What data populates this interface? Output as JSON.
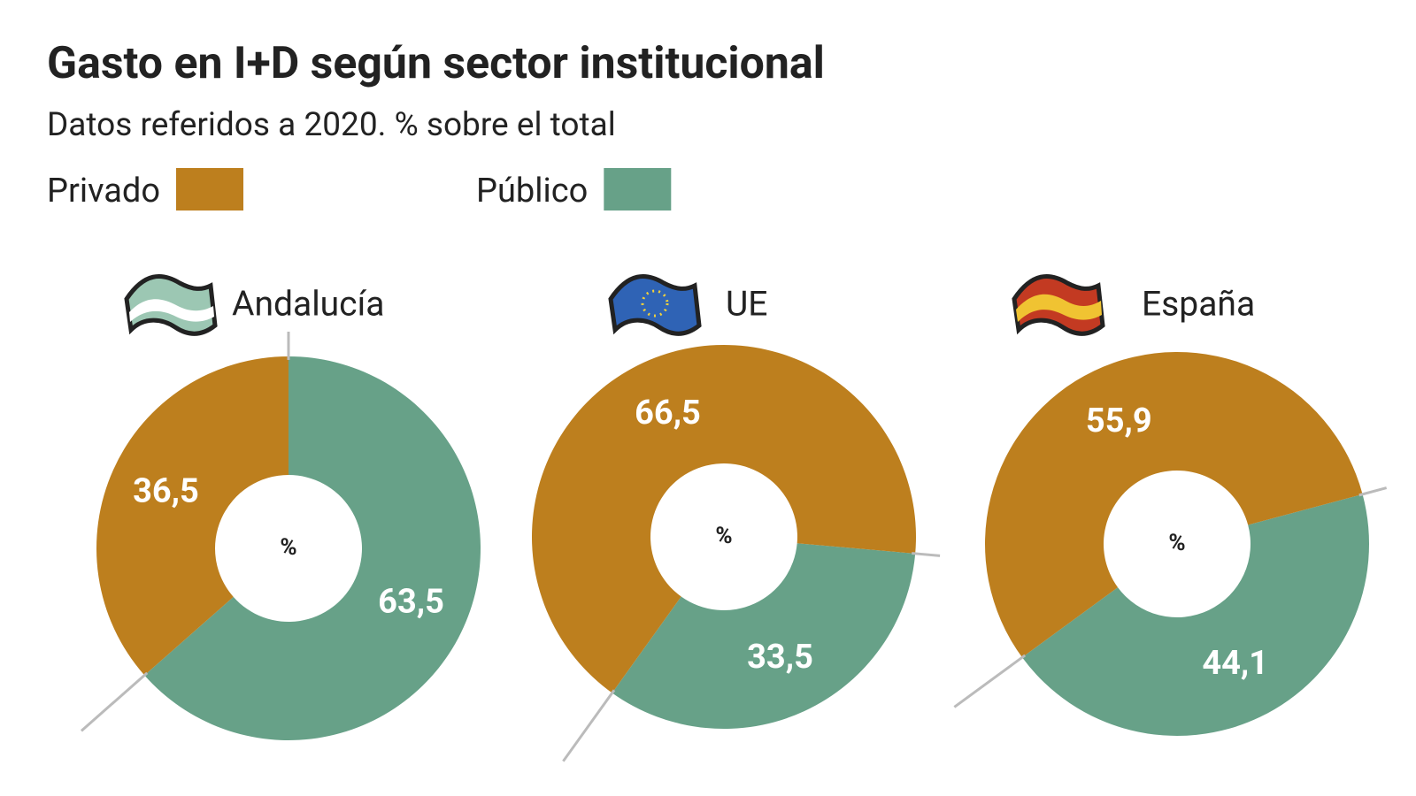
{
  "title": "Gasto en I+D según sector institucional",
  "subtitle": "Datos referidos a 2020. % sobre el total",
  "legend": {
    "labels": [
      "Privado",
      "Público"
    ],
    "colors": [
      "#bd7f1e",
      "#67a188"
    ]
  },
  "chart_data": [
    {
      "type": "donut",
      "title": "Andalucía",
      "values": [
        36.5,
        63.5
      ],
      "value_labels": [
        "36,5",
        "63,5"
      ],
      "center_label": "%"
    },
    {
      "type": "donut",
      "title": "UE",
      "values": [
        66.5,
        33.5
      ],
      "value_labels": [
        "66,5",
        "33,5"
      ],
      "center_label": "%"
    },
    {
      "type": "donut",
      "title": "España",
      "values": [
        55.9,
        44.1
      ],
      "value_labels": [
        "55,9",
        "44,1"
      ],
      "center_label": "%"
    }
  ]
}
